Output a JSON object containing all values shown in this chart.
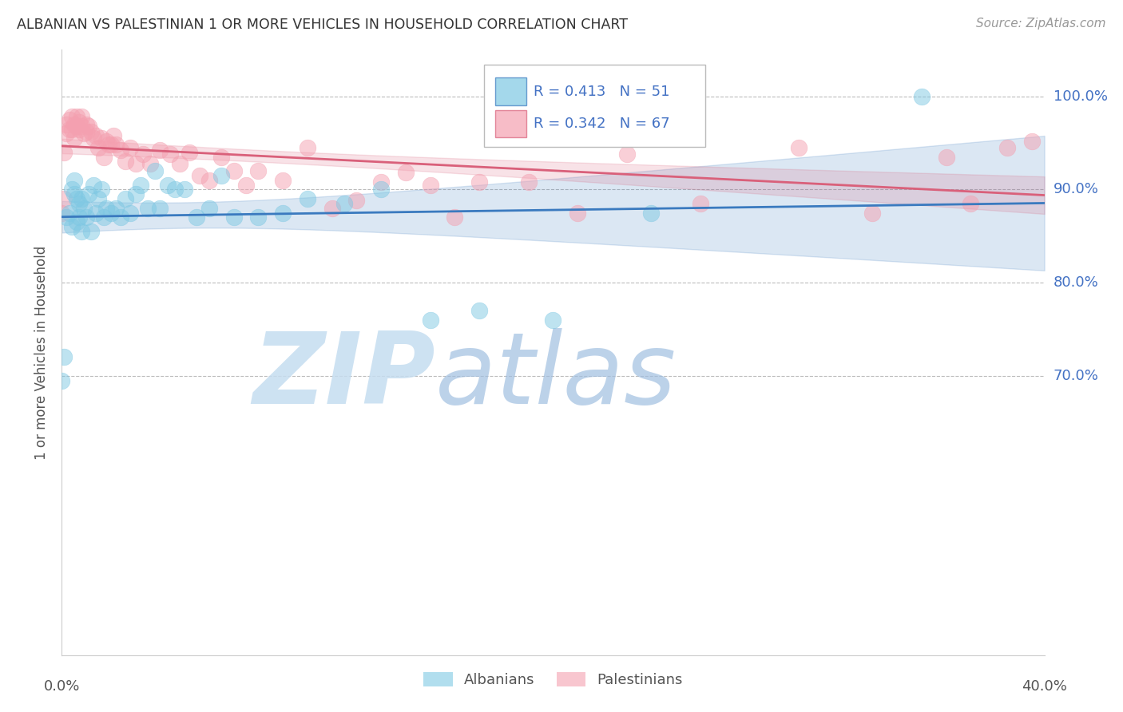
{
  "title": "ALBANIAN VS PALESTINIAN 1 OR MORE VEHICLES IN HOUSEHOLD CORRELATION CHART",
  "source": "Source: ZipAtlas.com",
  "ylabel_label": "1 or more Vehicles in Household",
  "legend_albanian": "Albanians",
  "legend_palestinian": "Palestinians",
  "R_albanian": 0.413,
  "N_albanian": 51,
  "R_palestinian": 0.342,
  "N_palestinian": 67,
  "albanian_color": "#7ec8e3",
  "palestinian_color": "#f4a0b0",
  "albanian_line_color": "#3a7abf",
  "palestinian_line_color": "#d9607a",
  "albanian_x": [
    0.0,
    0.001,
    0.002,
    0.003,
    0.004,
    0.004,
    0.005,
    0.005,
    0.006,
    0.006,
    0.007,
    0.007,
    0.008,
    0.008,
    0.009,
    0.01,
    0.011,
    0.012,
    0.013,
    0.014,
    0.015,
    0.016,
    0.017,
    0.018,
    0.02,
    0.022,
    0.024,
    0.026,
    0.028,
    0.03,
    0.032,
    0.035,
    0.038,
    0.04,
    0.043,
    0.046,
    0.05,
    0.055,
    0.06,
    0.065,
    0.07,
    0.08,
    0.09,
    0.1,
    0.115,
    0.13,
    0.15,
    0.17,
    0.2,
    0.24,
    0.35
  ],
  "albanian_y": [
    0.695,
    0.72,
    0.87,
    0.875,
    0.9,
    0.86,
    0.895,
    0.91,
    0.865,
    0.89,
    0.885,
    0.87,
    0.89,
    0.855,
    0.88,
    0.87,
    0.895,
    0.855,
    0.905,
    0.875,
    0.89,
    0.9,
    0.87,
    0.88,
    0.875,
    0.88,
    0.87,
    0.89,
    0.875,
    0.895,
    0.905,
    0.88,
    0.92,
    0.88,
    0.905,
    0.9,
    0.9,
    0.87,
    0.88,
    0.915,
    0.87,
    0.87,
    0.875,
    0.89,
    0.885,
    0.9,
    0.76,
    0.77,
    0.76,
    0.875,
    1.0
  ],
  "palestinian_x": [
    0.0,
    0.001,
    0.001,
    0.002,
    0.002,
    0.003,
    0.003,
    0.004,
    0.004,
    0.005,
    0.005,
    0.006,
    0.006,
    0.007,
    0.007,
    0.008,
    0.008,
    0.009,
    0.01,
    0.01,
    0.011,
    0.012,
    0.013,
    0.014,
    0.015,
    0.016,
    0.017,
    0.018,
    0.019,
    0.02,
    0.021,
    0.022,
    0.024,
    0.026,
    0.028,
    0.03,
    0.033,
    0.036,
    0.04,
    0.044,
    0.048,
    0.052,
    0.056,
    0.06,
    0.065,
    0.07,
    0.075,
    0.08,
    0.09,
    0.1,
    0.11,
    0.12,
    0.13,
    0.14,
    0.15,
    0.16,
    0.17,
    0.19,
    0.21,
    0.23,
    0.26,
    0.3,
    0.33,
    0.36,
    0.37,
    0.385,
    0.395
  ],
  "palestinian_y": [
    0.875,
    0.89,
    0.94,
    0.96,
    0.97,
    0.965,
    0.975,
    0.978,
    0.965,
    0.97,
    0.955,
    0.968,
    0.978,
    0.965,
    0.972,
    0.968,
    0.978,
    0.96,
    0.962,
    0.97,
    0.968,
    0.962,
    0.955,
    0.958,
    0.945,
    0.955,
    0.935,
    0.952,
    0.948,
    0.948,
    0.958,
    0.948,
    0.942,
    0.93,
    0.945,
    0.928,
    0.938,
    0.928,
    0.942,
    0.938,
    0.928,
    0.94,
    0.915,
    0.91,
    0.935,
    0.92,
    0.905,
    0.92,
    0.91,
    0.945,
    0.88,
    0.888,
    0.908,
    0.918,
    0.905,
    0.87,
    0.908,
    0.908,
    0.875,
    0.938,
    0.885,
    0.945,
    0.875,
    0.935,
    0.885,
    0.945,
    0.952
  ],
  "xmin": 0.0,
  "xmax": 0.4,
  "ymin": 0.4,
  "ymax": 1.05,
  "yticks": [
    0.7,
    0.8,
    0.9,
    1.0
  ],
  "ytick_labels": [
    "70.0%",
    "80.0%",
    "90.0%",
    "100.0%"
  ],
  "watermark_text": "ZIPatlas",
  "watermark_zip_color": "#c8dff0",
  "watermark_atlas_color": "#a8c8e8",
  "background_color": "#ffffff",
  "grid_color": "#bbbbbb",
  "title_color": "#333333",
  "source_color": "#999999",
  "axis_label_color": "#555555",
  "tick_label_color_left": "#555555",
  "tick_label_color_right": "#4472c4",
  "legend_text_color": "#4472c4"
}
